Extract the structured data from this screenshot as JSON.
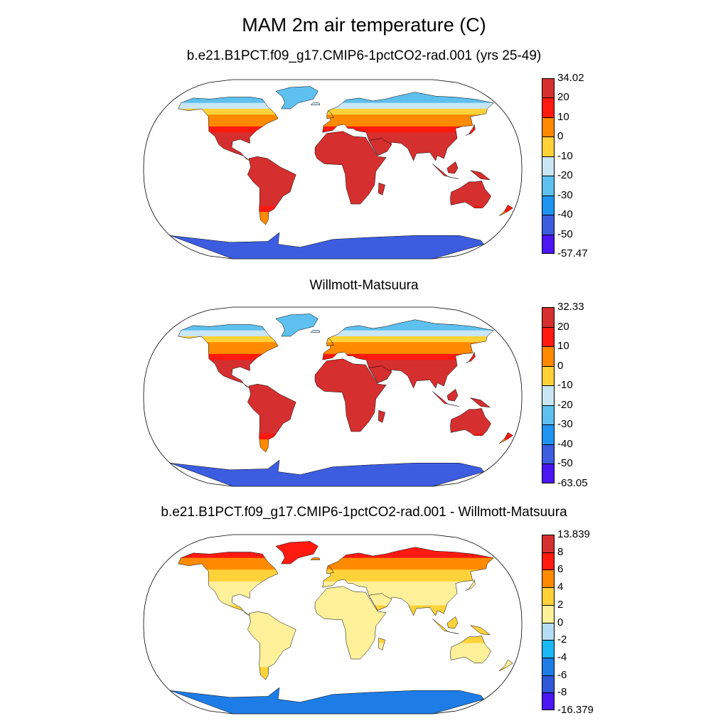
{
  "figure": {
    "title": "MAM 2m air temperature (C)"
  },
  "panels": [
    {
      "title": "b.e21.B1PCT.f09_g17.CMIP6-1pctCO2-rad.001 (yrs 25-49)",
      "colorbar": {
        "labels": [
          "34.02",
          "20",
          "10",
          "0",
          "-10",
          "-20",
          "-30",
          "-40",
          "-50",
          "-57.47"
        ],
        "colors": [
          "#d62f2f",
          "#ff1a10",
          "#ff8a00",
          "#ffd23a",
          "#c9e6f5",
          "#5ec0ee",
          "#1f94f0",
          "#3d5de0",
          "#4a16f2"
        ]
      },
      "temperature_pattern": {
        "antarctica": "blue",
        "greenland": "light-blue",
        "high-latitudes": "orange/light-blue",
        "tropics": "dark-red"
      }
    },
    {
      "title": "Willmott-Matsuura",
      "colorbar": {
        "labels": [
          "32.33",
          "20",
          "10",
          "0",
          "-10",
          "-20",
          "-30",
          "-40",
          "-50",
          "-63.05"
        ],
        "colors": [
          "#d62f2f",
          "#ff1a10",
          "#ff8a00",
          "#ffd23a",
          "#c9e6f5",
          "#5ec0ee",
          "#1f94f0",
          "#3d5de0",
          "#4a16f2"
        ]
      },
      "temperature_pattern": {
        "antarctica": "blue",
        "greenland": "light-blue",
        "high-latitudes": "orange/light-blue",
        "tropics": "dark-red"
      }
    },
    {
      "title": "b.e21.B1PCT.f09_g17.CMIP6-1pctCO2-rad.001 - Willmott-Matsuura",
      "colorbar": {
        "labels": [
          "13.839",
          "8",
          "6",
          "4",
          "2",
          "0",
          "-2",
          "-4",
          "-6",
          "-8",
          "-16.379"
        ],
        "colors": [
          "#d62f2f",
          "#ff1a10",
          "#ff8a00",
          "#ffd23a",
          "#fff09a",
          "#b5dcf5",
          "#1ab8f5",
          "#1e7ce6",
          "#2f58d9",
          "#4a16f2"
        ]
      },
      "temperature_pattern": {
        "antarctica": "mixed",
        "greenland": "red",
        "high-latitudes": "orange/red",
        "tropics": "yellow/light-blue"
      }
    }
  ]
}
